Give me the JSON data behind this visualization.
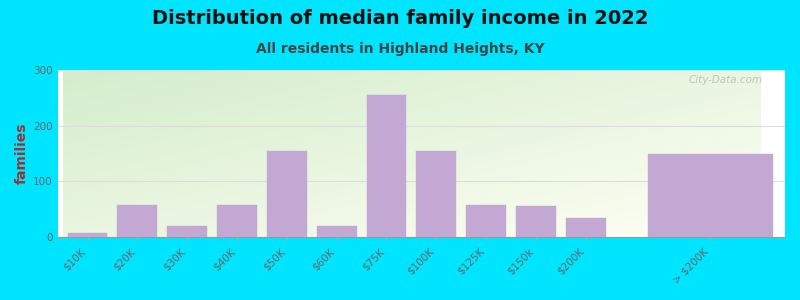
{
  "title": "Distribution of median family income in 2022",
  "subtitle": "All residents in Highland Heights, KY",
  "ylabel": "families",
  "categories": [
    "$10K",
    "$20K",
    "$30K",
    "$40K",
    "$50K",
    "$60K",
    "$75K",
    "$100K",
    "$125K",
    "$150k",
    "$200K",
    "> $200K"
  ],
  "values": [
    7,
    58,
    20,
    58,
    155,
    20,
    255,
    155,
    58,
    55,
    35,
    150
  ],
  "bar_widths": [
    1,
    1,
    1,
    1,
    1,
    1,
    1,
    1,
    1,
    1,
    1,
    3
  ],
  "bar_color": "#c4a8d4",
  "background_outer": "#00e5ff",
  "plot_bg_color_topleft": "#d4edcc",
  "plot_bg_color_bottomright": "#fffff5",
  "title_fontsize": 14,
  "subtitle_fontsize": 10,
  "ylabel_fontsize": 10,
  "tick_fontsize": 7.5,
  "ylim": [
    0,
    300
  ],
  "yticks": [
    0,
    100,
    200,
    300
  ],
  "watermark_text": "City-Data.com",
  "title_color": "#111111",
  "subtitle_color": "#444444",
  "ylabel_color": "#993333",
  "tick_color": "#666666",
  "grid_color": "#dddddd"
}
